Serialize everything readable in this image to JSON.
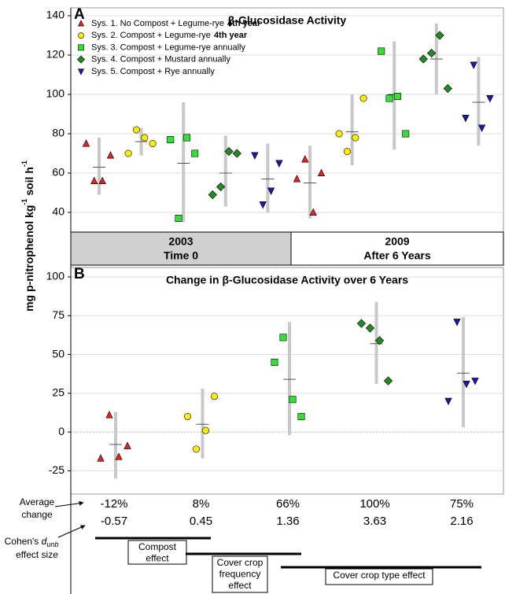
{
  "chart_data": [
    {
      "type": "strip",
      "panel": "A",
      "title": "β-Glucosidase Activity",
      "ylabel_parts": [
        "mg p-nitrophenol kg",
        "-1",
        " soil h",
        "-1"
      ],
      "ylim": [
        30,
        140
      ],
      "yticks": [
        40,
        60,
        80,
        100,
        120,
        140
      ],
      "grid": true,
      "groups": [
        {
          "label": "2003",
          "sublabel": "Time 0",
          "color": "#d0d0d0"
        },
        {
          "label": "2009",
          "sublabel": "After 6 Years",
          "color": "#ffffff"
        }
      ],
      "series": [
        {
          "name": "Sys. 1.  No Compost + Legume-rye",
          "name_suffix": "4th year",
          "color": "#e02424",
          "marker": "triangle-up",
          "values": [
            [
              75,
              56,
              56,
              69
            ],
            [
              57,
              67,
              40,
              60
            ]
          ],
          "means": [
            63,
            55
          ],
          "ranges": [
            [
              49,
              78
            ],
            [
              37,
              74
            ]
          ]
        },
        {
          "name": "Sys. 2.  Compost + Legume-rye",
          "name_suffix": "4th year",
          "color": "#ffee00",
          "marker": "circle",
          "values": [
            [
              70,
              82,
              78,
              75
            ],
            [
              80,
              71,
              78,
              98
            ]
          ],
          "means": [
            76,
            81
          ],
          "ranges": [
            [
              69,
              83
            ],
            [
              64,
              100
            ]
          ]
        },
        {
          "name": "Sys. 3.  Compost + Legume-rye annually",
          "color": "#33e033",
          "marker": "square",
          "values": [
            [
              77,
              37,
              78,
              70
            ],
            [
              122,
              98,
              99,
              80
            ]
          ],
          "means": [
            65,
            100
          ],
          "ranges": [
            [
              35,
              96
            ],
            [
              72,
              127
            ]
          ]
        },
        {
          "name": "Sys. 4.  Compost + Mustard annually",
          "color": "#228b22",
          "marker": "diamond",
          "values": [
            [
              49,
              53,
              71,
              70
            ],
            [
              118,
              121,
              130,
              103
            ]
          ],
          "means": [
            60,
            118
          ],
          "ranges": [
            [
              43,
              79
            ],
            [
              100,
              136
            ]
          ]
        },
        {
          "name": "Sys. 5.  Compost  + Rye annually",
          "color": "#1a1aa8",
          "marker": "triangle-down",
          "values": [
            [
              69,
              44,
              51,
              65
            ],
            [
              88,
              115,
              83,
              98
            ]
          ],
          "means": [
            57,
            96
          ],
          "ranges": [
            [
              40,
              75
            ],
            [
              74,
              119
            ]
          ]
        }
      ]
    },
    {
      "type": "strip",
      "panel": "B",
      "title": "Change in β-Glucosidase Activity over 6 Years",
      "ylim": [
        -40,
        100
      ],
      "yticks": [
        -25,
        0,
        25,
        50,
        75,
        100
      ],
      "grid": true,
      "series": [
        {
          "color": "#e02424",
          "marker": "triangle-up",
          "values": [
            -17,
            11,
            -16,
            -9
          ],
          "mean": -8,
          "range": [
            -30,
            13
          ]
        },
        {
          "color": "#ffee00",
          "marker": "circle",
          "values": [
            10,
            -11,
            1,
            23
          ],
          "mean": 5,
          "range": [
            -17,
            28
          ]
        },
        {
          "color": "#33e033",
          "marker": "square",
          "values": [
            45,
            61,
            21,
            10
          ],
          "mean": 34,
          "range": [
            -2,
            71
          ]
        },
        {
          "color": "#228b22",
          "marker": "diamond",
          "values": [
            70,
            67,
            59,
            33
          ],
          "mean": 57,
          "range": [
            31,
            84
          ]
        },
        {
          "color": "#1a1aa8",
          "marker": "triangle-down",
          "values": [
            20,
            71,
            31,
            33
          ],
          "mean": 38,
          "range": [
            3,
            74
          ]
        }
      ]
    }
  ],
  "annotations": {
    "average_change": {
      "label_lines": [
        "Average",
        "change"
      ],
      "values": [
        "-12%",
        "8%",
        "66%",
        "100%",
        "75%"
      ]
    },
    "effect_size": {
      "label_parts": [
        "Cohen's ",
        "d",
        "unb",
        "effect size"
      ],
      "values": [
        "-0.57",
        "0.45",
        "1.36",
        "3.63",
        "2.16"
      ]
    },
    "effects": [
      {
        "lines": [
          "Compost",
          "effect"
        ]
      },
      {
        "lines": [
          "Cover crop",
          "frequency",
          "effect"
        ]
      },
      {
        "lines": [
          "Cover crop type effect"
        ]
      }
    ]
  }
}
